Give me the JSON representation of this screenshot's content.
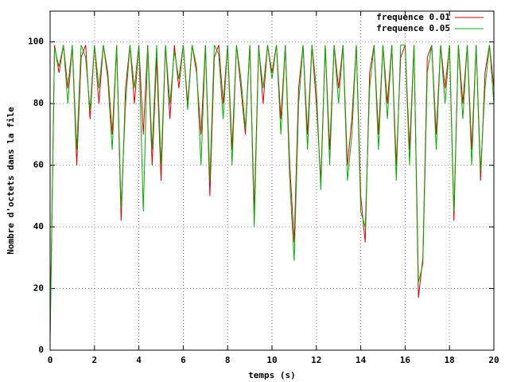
{
  "chart_data": {
    "type": "line",
    "xlabel": "temps (s)",
    "ylabel": "Nombre d'octets dans la file",
    "xlim": [
      0,
      20
    ],
    "xticks": [
      0,
      2,
      4,
      6,
      8,
      10,
      12,
      14,
      16,
      18,
      20
    ],
    "ylim": [
      0,
      110
    ],
    "yticks": [
      0,
      20,
      40,
      60,
      80,
      100
    ],
    "grid": true,
    "legend": "top-right",
    "x": [
      0,
      0.2,
      0.4,
      0.6,
      0.8,
      1,
      1.2,
      1.4,
      1.6,
      1.8,
      2,
      2.2,
      2.4,
      2.6,
      2.8,
      3,
      3.2,
      3.4,
      3.6,
      3.8,
      4,
      4.2,
      4.4,
      4.6,
      4.8,
      5,
      5.2,
      5.4,
      5.6,
      5.8,
      6,
      6.2,
      6.4,
      6.6,
      6.8,
      7,
      7.2,
      7.4,
      7.6,
      7.8,
      8,
      8.2,
      8.4,
      8.6,
      8.8,
      9,
      9.2,
      9.4,
      9.6,
      9.8,
      10,
      10.2,
      10.4,
      10.6,
      10.8,
      11,
      11.2,
      11.4,
      11.6,
      11.8,
      12,
      12.2,
      12.4,
      12.6,
      12.8,
      13,
      13.2,
      13.4,
      13.6,
      13.8,
      14,
      14.2,
      14.4,
      14.6,
      14.8,
      15,
      15.2,
      15.4,
      15.6,
      15.8,
      16,
      16.2,
      16.4,
      16.6,
      16.8,
      17,
      17.2,
      17.4,
      17.6,
      17.8,
      18,
      18.2,
      18.4,
      18.6,
      18.8,
      19,
      19.2,
      19.4,
      19.6,
      19.8,
      20
    ],
    "series": [
      {
        "name": "frequence 0.01",
        "color": "#e00000",
        "values": [
          5,
          99,
          90,
          99,
          85,
          99,
          60,
          95,
          99,
          75,
          99,
          80,
          99,
          90,
          70,
          99,
          42,
          85,
          99,
          80,
          99,
          70,
          99,
          60,
          95,
          55,
          99,
          75,
          99,
          85,
          99,
          80,
          99,
          90,
          70,
          99,
          50,
          95,
          99,
          80,
          99,
          65,
          99,
          85,
          70,
          99,
          45,
          99,
          80,
          99,
          90,
          99,
          75,
          99,
          60,
          35,
          85,
          99,
          70,
          99,
          80,
          55,
          99,
          65,
          99,
          85,
          99,
          60,
          75,
          99,
          50,
          35,
          90,
          99,
          70,
          99,
          80,
          99,
          60,
          95,
          99,
          65,
          99,
          17,
          30,
          95,
          99,
          70,
          99,
          85,
          99,
          42,
          99,
          80,
          99,
          65,
          99,
          55,
          90,
          99,
          85
        ]
      },
      {
        "name": "frequence 0.05",
        "color": "#00b000",
        "values": [
          3,
          98,
          92,
          99,
          80,
          99,
          65,
          99,
          95,
          78,
          99,
          85,
          99,
          88,
          65,
          99,
          46,
          80,
          99,
          85,
          99,
          45,
          99,
          65,
          99,
          60,
          99,
          80,
          97,
          88,
          99,
          78,
          99,
          92,
          60,
          99,
          55,
          99,
          96,
          75,
          99,
          60,
          99,
          88,
          72,
          99,
          40,
          98,
          85,
          99,
          88,
          99,
          70,
          99,
          55,
          29,
          80,
          99,
          65,
          99,
          85,
          52,
          99,
          60,
          99,
          80,
          99,
          55,
          70,
          99,
          45,
          40,
          85,
          99,
          65,
          99,
          75,
          99,
          55,
          99,
          99,
          60,
          99,
          22,
          28,
          90,
          99,
          65,
          99,
          80,
          99,
          45,
          99,
          75,
          99,
          60,
          99,
          58,
          85,
          99,
          80
        ]
      }
    ]
  }
}
